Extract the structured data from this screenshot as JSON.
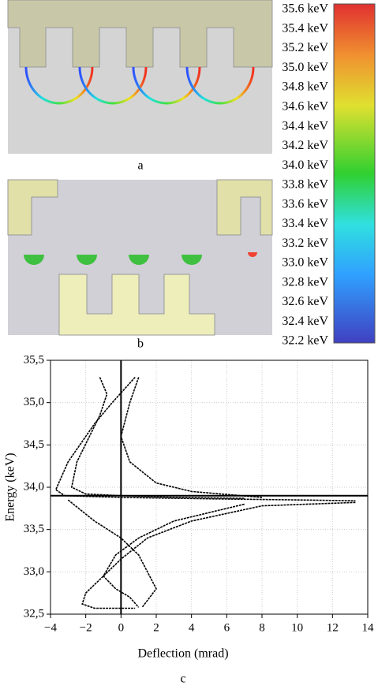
{
  "figure": {
    "panel_labels": [
      "a",
      "b",
      "c"
    ],
    "colorbar": {
      "labels": [
        "35.6 keV",
        "35.4 keV",
        "35.2 keV",
        "35.0 keV",
        "34.8 keV",
        "34.6 keV",
        "34.4 keV",
        "34.2 keV",
        "34.0 keV",
        "33.8 keV",
        "33.6 keV",
        "33.4 keV",
        "33.2 keV",
        "33.0 keV",
        "32.8 keV",
        "32.6 keV",
        "32.4 keV",
        "32.2 keV"
      ]
    }
  },
  "chart_data": {
    "type": "line",
    "xlabel": "Deflection (mrad)",
    "ylabel": "Energy (keV)",
    "xlim": [
      -4,
      14
    ],
    "xticks": [
      {
        "value": -4,
        "label": "−4"
      },
      {
        "value": -2,
        "label": "−2"
      },
      0,
      2,
      4,
      6,
      8,
      10,
      12,
      14
    ],
    "ylim": [
      32.5,
      35.5
    ],
    "yticks": [
      {
        "value": 32.5,
        "label": "32,5"
      },
      {
        "value": 33,
        "label": "33,0"
      },
      {
        "value": 33.5,
        "label": "33,5"
      },
      {
        "value": 34,
        "label": "34,0"
      },
      {
        "value": 34.5,
        "label": "34,5"
      },
      {
        "value": 35,
        "label": "35,0"
      },
      {
        "value": 35.5,
        "label": "35,5"
      }
    ],
    "grid": true,
    "hlines": [
      33.9
    ],
    "vlines": [
      0
    ],
    "series": [
      {
        "color": "#000000",
        "x": [
          0.8,
          -0.5,
          -1.5,
          -3,
          -3.7,
          -3.2,
          0,
          3,
          6,
          10,
          13.3
        ],
        "values": [
          35.3,
          35.0,
          34.75,
          34.3,
          33.97,
          33.9,
          33.88,
          33.87,
          33.86,
          33.85,
          33.84
        ]
      },
      {
        "color": "#000000",
        "x": [
          -1.2,
          -0.8,
          -1.2,
          -2.5,
          -2.8,
          -2,
          0,
          3,
          7
        ],
        "values": [
          35.3,
          35.1,
          34.85,
          34.3,
          34.0,
          33.92,
          33.9,
          33.88,
          33.87
        ]
      },
      {
        "color": "#000000",
        "x": [
          1,
          0.5,
          0,
          0.5,
          2,
          4,
          8
        ],
        "values": [
          35.3,
          35.0,
          34.6,
          34.3,
          34.05,
          33.95,
          33.88
        ]
      },
      {
        "color": "#000000",
        "x": [
          13.3,
          8,
          4,
          1.5,
          0,
          -1,
          -2,
          -2.2,
          -1.5,
          0.8
        ],
        "values": [
          33.82,
          33.78,
          33.6,
          33.4,
          33.15,
          32.95,
          32.75,
          32.62,
          32.57,
          32.57
        ]
      },
      {
        "color": "#000000",
        "x": [
          7,
          3,
          1,
          -0.3,
          -1,
          -0.3,
          0.5,
          1
        ],
        "values": [
          33.8,
          33.6,
          33.4,
          33.2,
          32.95,
          32.8,
          32.7,
          32.58
        ]
      },
      {
        "color": "#000000",
        "x": [
          -3,
          -1.5,
          0,
          1,
          1.5,
          2,
          1.2
        ],
        "values": [
          33.85,
          33.6,
          33.4,
          33.2,
          33.0,
          32.8,
          32.58
        ]
      }
    ]
  }
}
